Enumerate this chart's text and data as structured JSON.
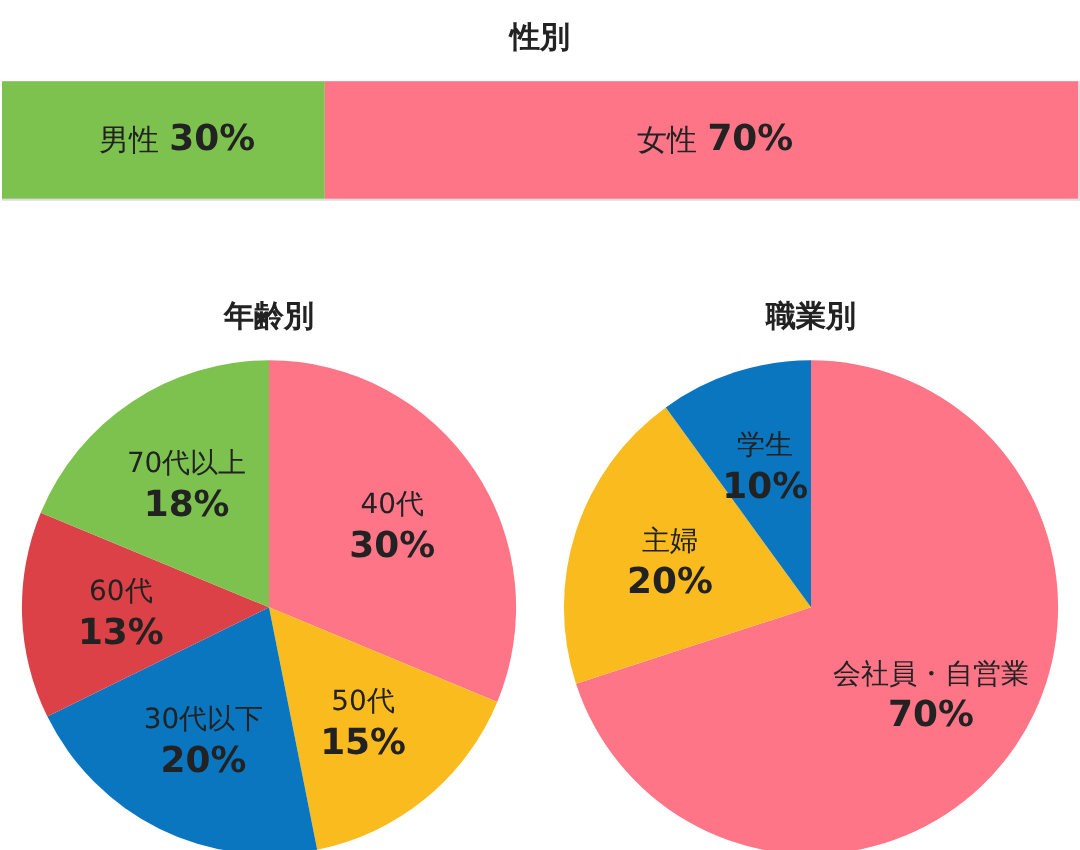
{
  "chart_data": [
    {
      "type": "bar",
      "title": "性別",
      "orientation": "horizontal",
      "stacked": true,
      "categories": [
        null
      ],
      "tick_labels": false,
      "series": [
        {
          "name": "男性",
          "color": "#7dc24f",
          "values": [
            30
          ],
          "value_labels": [
            "30%"
          ]
        },
        {
          "name": "女性",
          "color": "#fd7586",
          "values": [
            70
          ],
          "value_labels": [
            "70%"
          ]
        }
      ]
    },
    {
      "type": "pie",
      "title": "年齢別",
      "categories": [
        "40代",
        "50代",
        "30代以下",
        "60代",
        "70代以上"
      ],
      "values": [
        30,
        15,
        20,
        13,
        18
      ],
      "value_labels": [
        "30%",
        "15%",
        "20%",
        "13%",
        "18%"
      ],
      "colors": [
        "#fd7586",
        "#fabb1e",
        "#0a76c0",
        "#db4146",
        "#7dc24f"
      ]
    },
    {
      "type": "pie",
      "title": "職業別",
      "categories": [
        "会社員・自営業",
        "主婦",
        "学生"
      ],
      "values": [
        70,
        20,
        10
      ],
      "value_labels": [
        "70%",
        "20%",
        "10%"
      ],
      "colors": [
        "#fd7586",
        "#fabb1e",
        "#0a76c0"
      ]
    }
  ]
}
